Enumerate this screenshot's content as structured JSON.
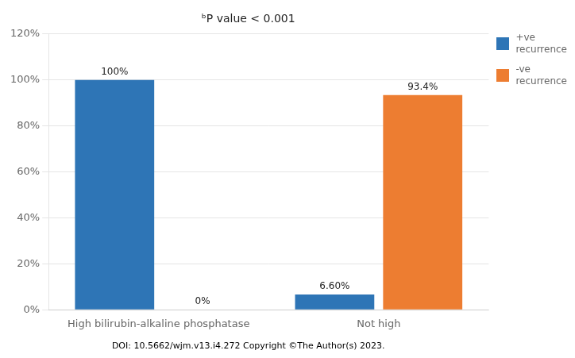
{
  "chart_data": {
    "type": "bar",
    "title": "ᵇP value < 0.001",
    "categories": [
      "High bilirubin-alkaline phosphatase",
      "Not high"
    ],
    "series": [
      {
        "name": "+ve\nrecurrence",
        "color": "#2E75B6",
        "values": [
          100.0,
          6.6
        ],
        "value_labels": [
          "100%",
          "6.60%"
        ]
      },
      {
        "name": "-ve\nrecurrence",
        "color": "#ED7D31",
        "values": [
          0.0,
          93.4
        ],
        "value_labels": [
          "0%",
          "93.4%"
        ]
      }
    ],
    "ylim": [
      0,
      120
    ],
    "yticks": [
      {
        "value": 0,
        "label": "0%"
      },
      {
        "value": 20,
        "label": "20%"
      },
      {
        "value": 40,
        "label": "40%"
      },
      {
        "value": 60,
        "label": "60%"
      },
      {
        "value": 80,
        "label": "80%"
      },
      {
        "value": 100,
        "label": "100%"
      },
      {
        "value": 120,
        "label": "120%"
      }
    ],
    "grid": true,
    "legend": "upper right",
    "data_labels": true,
    "annotations": [
      "DOI: 10.5662/wjm.v13.i4.272 Copyright ©The Author(s) 2023."
    ]
  }
}
